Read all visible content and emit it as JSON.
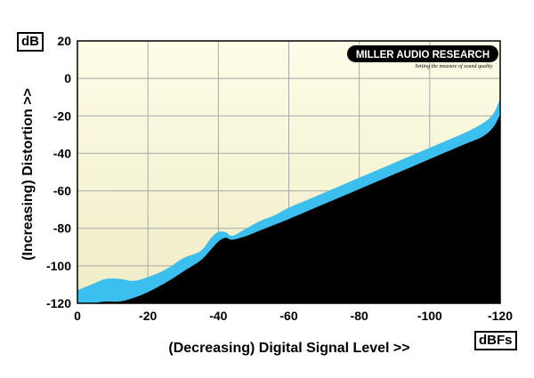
{
  "chart_data": {
    "type": "area",
    "title": "",
    "xlabel": "(Decreasing) Digital Signal Level >>",
    "ylabel": "(Increasing) Distortion >>",
    "x_unit": "dBFs",
    "y_unit": "dB",
    "xlim": [
      0,
      -120
    ],
    "ylim": [
      -120,
      20
    ],
    "x_ticks": [
      0,
      -20,
      -40,
      -60,
      -80,
      -100,
      -120
    ],
    "y_ticks": [
      20,
      0,
      -20,
      -40,
      -60,
      -80,
      -100,
      -120
    ],
    "x_tick_labels": [
      "0",
      "-20",
      "-40",
      "-60",
      "-80",
      "-100",
      "-120"
    ],
    "y_tick_labels": [
      "20",
      "0",
      "-20",
      "-40",
      "-60",
      "-80",
      "-100",
      "-120"
    ],
    "grid": true,
    "series": [
      {
        "name": "",
        "x": [
          0,
          -4,
          -8,
          -12,
          -16,
          -20,
          -25,
          -30,
          -35,
          -38,
          -40,
          -42,
          -44,
          -48,
          -52,
          -56,
          -60,
          -65,
          -70,
          -75,
          -80,
          -85,
          -90,
          -95,
          -100,
          -105,
          -110,
          -115,
          -118,
          -120
        ],
        "upper": [
          -113,
          -110,
          -107,
          -107,
          -108,
          -106,
          -102,
          -96,
          -92,
          -85,
          -82,
          -82,
          -84,
          -80,
          -76,
          -73,
          -69,
          -65,
          -61,
          -57,
          -53,
          -49,
          -45,
          -41,
          -37,
          -33,
          -29,
          -24,
          -19,
          -11
        ],
        "lower": [
          -120,
          -120,
          -119,
          -119,
          -117,
          -114,
          -109,
          -103,
          -97,
          -91,
          -87,
          -85,
          -86,
          -84,
          -81,
          -78,
          -75,
          -71,
          -67,
          -63,
          -59,
          -55,
          -51,
          -47,
          -43,
          -39,
          -35,
          -31,
          -26,
          -19
        ]
      }
    ],
    "colors": {
      "band": "#3bbfee",
      "below": "#000000",
      "plot_bg_top": "#fdfde8",
      "plot_bg_bottom": "#efecc6",
      "grid": "#a8a8a8"
    }
  },
  "logo": {
    "text_main": "MILLER AUDIO RESEARCH",
    "tagline": "Setting the measure of sound quality"
  }
}
